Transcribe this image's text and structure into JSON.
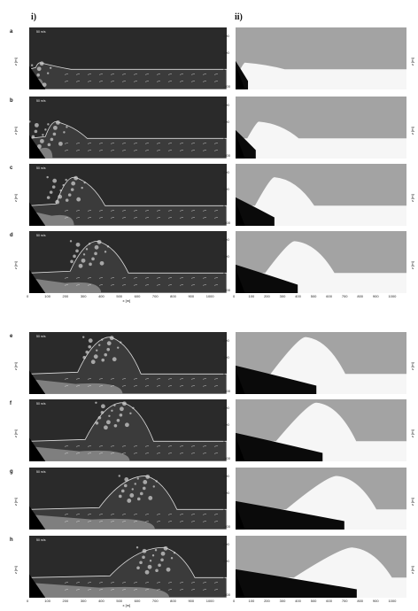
{
  "figure": {
    "column_labels": [
      "i)",
      "ii)"
    ],
    "panel_letters": [
      "a",
      "b",
      "c",
      "d",
      "e",
      "f",
      "g",
      "h"
    ],
    "z_axis_label": "z [m]",
    "x_axis_label": "x [m]",
    "scale_label": "50 m/s",
    "z_ticks": [
      "200",
      "100",
      "0",
      "-100"
    ],
    "x_ticks": [
      "0",
      "100",
      "200",
      "300",
      "400",
      "500",
      "600",
      "700",
      "800",
      "900",
      "1000"
    ]
  },
  "colors": {
    "background_dark": "#2a2a2a",
    "slide_grey": "#8c8c8c",
    "water_white": "#f6f6f6",
    "air_grey": "#a3a3a3",
    "slide_black": "#0a0a0a"
  },
  "panels": [
    {
      "letter": "a",
      "wave_peak_x": 60,
      "wave_peak_z": 40,
      "slide_front_x": 80,
      "crest_height": 20
    },
    {
      "letter": "b",
      "wave_peak_x": 150,
      "wave_peak_z": 100,
      "slide_front_x": 130,
      "crest_height": 60
    },
    {
      "letter": "c",
      "wave_peak_x": 250,
      "wave_peak_z": 170,
      "slide_front_x": 250,
      "crest_height": 120
    },
    {
      "letter": "d",
      "wave_peak_x": 380,
      "wave_peak_z": 190,
      "slide_front_x": 400,
      "crest_height": 150
    },
    {
      "letter": "e",
      "wave_peak_x": 450,
      "wave_peak_z": 220,
      "slide_front_x": 520,
      "crest_height": 170
    },
    {
      "letter": "f",
      "wave_peak_x": 520,
      "wave_peak_z": 230,
      "slide_front_x": 560,
      "crest_height": 180
    },
    {
      "letter": "g",
      "wave_peak_x": 650,
      "wave_peak_z": 200,
      "slide_front_x": 700,
      "crest_height": 170
    },
    {
      "letter": "h",
      "wave_peak_x": 750,
      "wave_peak_z": 180,
      "slide_front_x": 780,
      "crest_height": 160
    }
  ]
}
